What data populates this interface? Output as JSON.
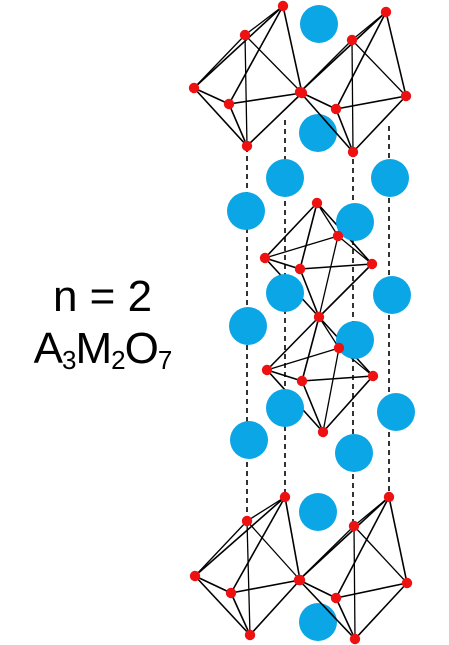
{
  "title": "n = 2",
  "formula": {
    "elements": [
      "A",
      "M",
      "O"
    ],
    "subscripts": [
      "3",
      "2",
      "7"
    ]
  },
  "colors": {
    "a_site": "#0aa6e6",
    "oxygen": "#ee1111",
    "bond": "#000000",
    "dashed_line": "#000000",
    "background": "#ffffff"
  }
}
